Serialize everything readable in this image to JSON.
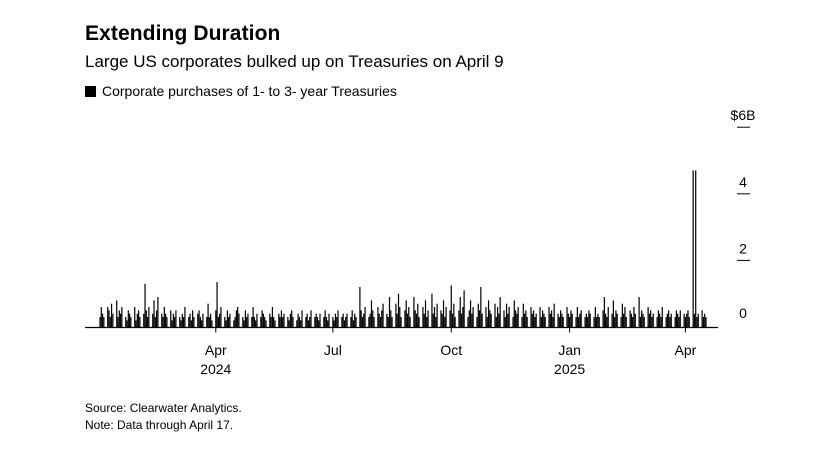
{
  "title": "Extending Duration",
  "subtitle": "Large US corporates bulked up on Treasuries on April 9",
  "legend": {
    "label": "Corporate purchases of 1- to 3- year Treasuries",
    "color": "#000000"
  },
  "footer": {
    "source": "Source: Clearwater Analytics.",
    "note": "Note: Data through April 17."
  },
  "chart_data": {
    "type": "bar",
    "series": [
      {
        "name": "Corporate purchases of 1- to 3- year Treasuries"
      }
    ],
    "x_range": [
      "2024-01-02",
      "2025-04-17"
    ],
    "ylim": [
      0,
      6
    ],
    "yticks": [
      {
        "value": 0,
        "label": "0"
      },
      {
        "value": 2,
        "label": "2"
      },
      {
        "value": 4,
        "label": "4"
      },
      {
        "value": 6,
        "label": "$6B"
      }
    ],
    "xticks": [
      {
        "date": "2024-04-01",
        "label": "Apr",
        "sub": "2024"
      },
      {
        "date": "2024-07-01",
        "label": "Jul",
        "sub": ""
      },
      {
        "date": "2024-10-01",
        "label": "Oct",
        "sub": ""
      },
      {
        "date": "2025-01-01",
        "label": "Jan",
        "sub": "2025"
      },
      {
        "date": "2025-04-01",
        "label": "Apr",
        "sub": ""
      }
    ],
    "peak": {
      "date": "2025-04-09",
      "value": 4.7
    },
    "daily_values": [
      0.6,
      0.4,
      0.3,
      0.6,
      0.5,
      0.3,
      0.7,
      0.4,
      0.8,
      0.3,
      0.5,
      0.4,
      0.6,
      0.3,
      0.2,
      0.5,
      0.4,
      0.3,
      0.6,
      0.2,
      0.4,
      0.5,
      0.3,
      0.4,
      1.3,
      0.5,
      0.3,
      0.6,
      0.4,
      0.8,
      0.3,
      0.5,
      0.9,
      0.4,
      0.3,
      0.6,
      0.4,
      0.3,
      0.5,
      0.2,
      0.4,
      0.3,
      0.5,
      0.3,
      0.2,
      0.4,
      0.3,
      0.6,
      0.3,
      0.4,
      0.2,
      0.5,
      0.3,
      0.4,
      0.5,
      0.3,
      0.2,
      0.4,
      0.3,
      0.7,
      0.3,
      0.4,
      0.2,
      0.5,
      1.35,
      0.3,
      0.4,
      0.6,
      0.3,
      0.2,
      0.5,
      0.3,
      0.4,
      0.2,
      0.3,
      0.5,
      0.6,
      0.4,
      0.3,
      0.2,
      0.5,
      0.3,
      0.4,
      0.3,
      0.6,
      0.3,
      0.2,
      0.4,
      0.3,
      0.5,
      0.4,
      0.3,
      0.2,
      0.4,
      0.3,
      0.6,
      0.3,
      0.2,
      0.4,
      0.3,
      0.5,
      0.3,
      0.4,
      0.3,
      0.2,
      0.4,
      0.5,
      0.3,
      0.2,
      0.4,
      0.3,
      0.2,
      0.5,
      0.3,
      0.4,
      0.2,
      0.3,
      0.5,
      0.3,
      0.4,
      0.3,
      0.2,
      0.4,
      0.3,
      0.5,
      0.3,
      0.2,
      0.4,
      0.3,
      0.2,
      0.4,
      0.3,
      0.5,
      0.3,
      0.4,
      0.2,
      0.3,
      0.4,
      0.3,
      0.5,
      0.2,
      0.4,
      0.3,
      1.2,
      0.5,
      0.3,
      0.4,
      0.6,
      0.3,
      0.4,
      0.8,
      0.5,
      0.3,
      0.6,
      0.4,
      0.3,
      0.5,
      0.7,
      0.4,
      0.3,
      0.9,
      0.5,
      0.3,
      0.7,
      0.4,
      1.0,
      0.6,
      0.3,
      0.5,
      0.8,
      0.4,
      0.6,
      0.3,
      0.9,
      0.5,
      0.4,
      0.7,
      0.3,
      0.6,
      0.4,
      0.8,
      0.3,
      0.5,
      1.0,
      0.4,
      0.6,
      0.3,
      0.7,
      0.5,
      0.4,
      0.8,
      0.3,
      0.6,
      0.5,
      1.25,
      0.4,
      0.7,
      0.3,
      0.5,
      0.9,
      0.4,
      0.6,
      1.1,
      0.3,
      0.5,
      0.8,
      0.4,
      0.6,
      0.3,
      0.7,
      0.5,
      1.2,
      0.4,
      0.6,
      0.3,
      0.8,
      0.5,
      0.4,
      0.7,
      0.3,
      0.6,
      0.4,
      0.9,
      0.5,
      0.3,
      0.7,
      0.4,
      0.6,
      0.3,
      0.8,
      0.5,
      0.4,
      0.6,
      0.3,
      0.7,
      0.4,
      0.5,
      0.3,
      0.6,
      0.4,
      0.5,
      0.3,
      0.4,
      0.6,
      0.3,
      0.5,
      0.4,
      0.3,
      0.6,
      0.4,
      0.5,
      0.3,
      0.7,
      0.4,
      0.3,
      0.5,
      0.4,
      0.3,
      0.6,
      0.4,
      0.3,
      0.5,
      0.4,
      0.3,
      0.6,
      0.3,
      0.4,
      0.5,
      0.3,
      0.4,
      0.3,
      0.5,
      0.4,
      0.3,
      0.6,
      0.3,
      0.4,
      0.3,
      0.5,
      0.9,
      0.4,
      0.3,
      0.6,
      0.4,
      0.8,
      0.3,
      0.5,
      0.4,
      0.3,
      0.7,
      0.4,
      0.6,
      0.3,
      0.5,
      0.4,
      0.3,
      0.6,
      0.4,
      0.9,
      0.3,
      0.5,
      0.4,
      0.3,
      0.6,
      0.4,
      0.5,
      0.3,
      0.4,
      0.3,
      0.5,
      0.4,
      0.3,
      0.6,
      0.3,
      0.4,
      0.5,
      0.3,
      0.4,
      0.3,
      0.5,
      0.4,
      0.3,
      0.5,
      0.4,
      0.3,
      0.4,
      0.5,
      0.3,
      4.7,
      0.4,
      0.5,
      0.3,
      0.4,
      0.5,
      0.3,
      0.4,
      0.3
    ]
  }
}
